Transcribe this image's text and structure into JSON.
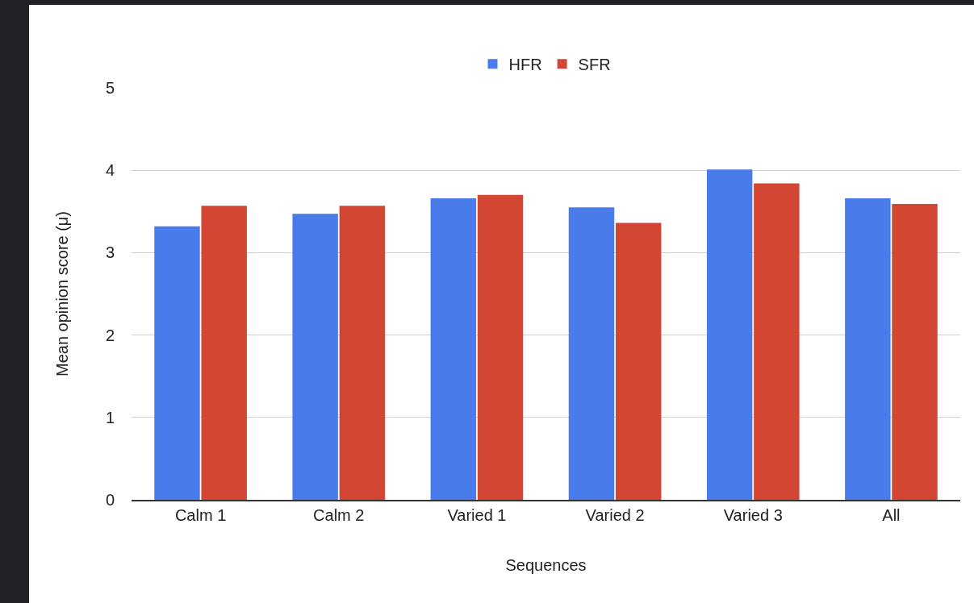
{
  "chart_data": {
    "type": "bar",
    "xlabel": "Sequences",
    "ylabel": "Mean opinion score (μ)",
    "categories": [
      "Calm 1",
      "Calm 2",
      "Varied 1",
      "Varied 2",
      "Varied 3",
      "All"
    ],
    "series": [
      {
        "name": "HFR",
        "color": "#4a7bea",
        "values": [
          3.32,
          3.47,
          3.66,
          3.55,
          4.01,
          3.66
        ]
      },
      {
        "name": "SFR",
        "color": "#d34634",
        "values": [
          3.57,
          3.57,
          3.7,
          3.36,
          3.84,
          3.59
        ]
      }
    ],
    "ylim": [
      0,
      5
    ],
    "yticks": [
      0,
      1,
      2,
      3,
      4,
      5
    ],
    "grid": "y",
    "legend": "top"
  }
}
